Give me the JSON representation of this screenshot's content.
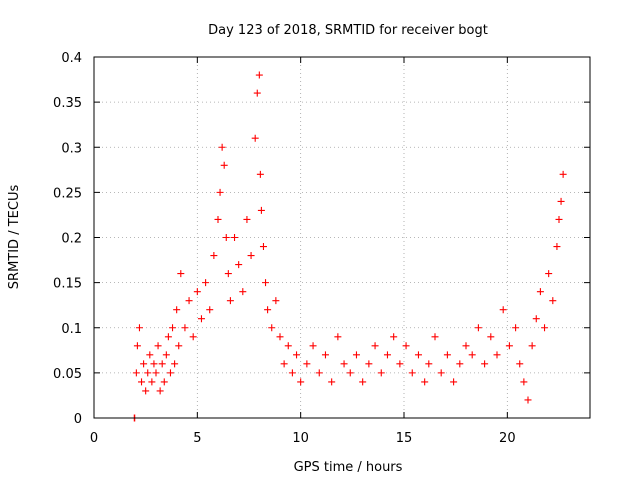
{
  "chart_data": {
    "type": "scatter",
    "title": "Day 123 of 2018, SRMTID for receiver bogt",
    "xlabel": "GPS time / hours",
    "ylabel": "SRMTID / TECUs",
    "xlim": [
      0,
      24
    ],
    "ylim": [
      0,
      0.4
    ],
    "xticks": [
      0,
      5,
      10,
      15,
      20
    ],
    "xtick_labels": [
      "0",
      "5",
      "10",
      "15",
      "20"
    ],
    "yticks": [
      0,
      0.05,
      0.1,
      0.15,
      0.2,
      0.25,
      0.3,
      0.35,
      0.4
    ],
    "ytick_labels": [
      "0",
      "0.05",
      "0.1",
      "0.15",
      "0.2",
      "0.25",
      "0.3",
      "0.35",
      "0.4"
    ],
    "grid": true,
    "marker": "plus",
    "marker_color": "#ff0000",
    "series": [
      {
        "name": "SRMTID",
        "color": "#ff0000",
        "x": [
          1.95,
          1.97,
          2.05,
          2.1,
          2.2,
          2.3,
          2.4,
          2.5,
          2.6,
          2.7,
          2.8,
          2.9,
          3.0,
          3.1,
          3.2,
          3.3,
          3.4,
          3.5,
          3.6,
          3.7,
          3.8,
          3.9,
          4.0,
          4.1,
          4.2,
          4.4,
          4.6,
          4.8,
          5.0,
          5.2,
          5.4,
          5.6,
          5.8,
          6.0,
          6.1,
          6.2,
          6.3,
          6.4,
          6.5,
          6.6,
          6.8,
          7.0,
          7.2,
          7.4,
          7.6,
          7.8,
          7.9,
          8.0,
          8.05,
          8.1,
          8.2,
          8.3,
          8.4,
          8.6,
          8.8,
          9.0,
          9.2,
          9.4,
          9.6,
          9.8,
          10.0,
          10.3,
          10.6,
          10.9,
          11.2,
          11.5,
          11.8,
          12.1,
          12.4,
          12.7,
          13.0,
          13.3,
          13.6,
          13.9,
          14.2,
          14.5,
          14.8,
          15.1,
          15.4,
          15.7,
          16.0,
          16.2,
          16.5,
          16.8,
          17.1,
          17.4,
          17.7,
          18.0,
          18.3,
          18.6,
          18.9,
          19.2,
          19.5,
          19.8,
          20.1,
          20.4,
          20.6,
          20.8,
          21.0,
          21.2,
          21.4,
          21.6,
          21.8,
          22.0,
          22.2,
          22.4,
          22.5,
          22.6,
          22.7
        ],
        "y": [
          0.0,
          0.0,
          0.05,
          0.08,
          0.1,
          0.04,
          0.06,
          0.03,
          0.05,
          0.07,
          0.04,
          0.06,
          0.05,
          0.08,
          0.03,
          0.06,
          0.04,
          0.07,
          0.09,
          0.05,
          0.1,
          0.06,
          0.12,
          0.08,
          0.16,
          0.1,
          0.13,
          0.09,
          0.14,
          0.11,
          0.15,
          0.12,
          0.18,
          0.22,
          0.25,
          0.3,
          0.28,
          0.2,
          0.16,
          0.13,
          0.2,
          0.17,
          0.14,
          0.22,
          0.18,
          0.31,
          0.36,
          0.38,
          0.27,
          0.23,
          0.19,
          0.15,
          0.12,
          0.1,
          0.13,
          0.09,
          0.06,
          0.08,
          0.05,
          0.07,
          0.04,
          0.06,
          0.08,
          0.05,
          0.07,
          0.04,
          0.09,
          0.06,
          0.05,
          0.07,
          0.04,
          0.06,
          0.08,
          0.05,
          0.07,
          0.09,
          0.06,
          0.08,
          0.05,
          0.07,
          0.04,
          0.06,
          0.09,
          0.05,
          0.07,
          0.04,
          0.06,
          0.08,
          0.07,
          0.1,
          0.06,
          0.09,
          0.07,
          0.12,
          0.08,
          0.1,
          0.06,
          0.04,
          0.02,
          0.08,
          0.11,
          0.14,
          0.1,
          0.16,
          0.13,
          0.19,
          0.22,
          0.24,
          0.27
        ]
      }
    ]
  }
}
